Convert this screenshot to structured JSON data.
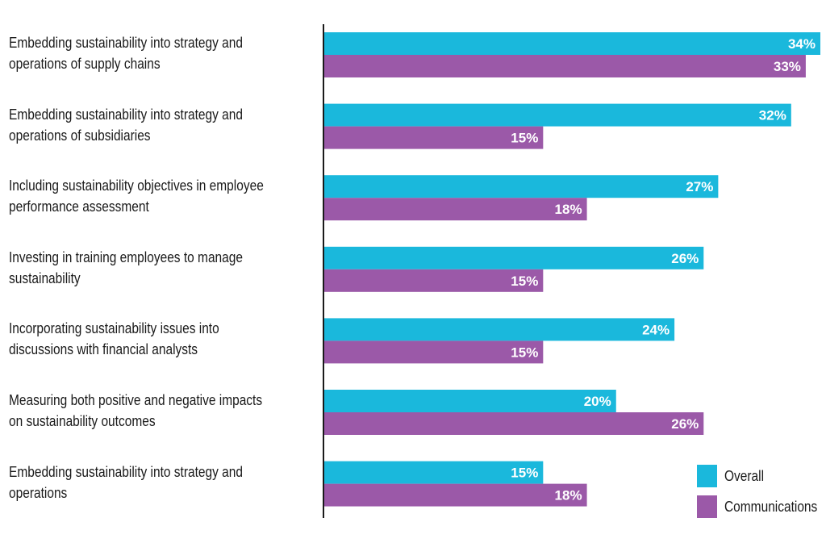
{
  "chart_data": {
    "type": "bar",
    "orientation": "horizontal",
    "categories": [
      [
        "Embedding sustainability into strategy and",
        "operations of supply chains"
      ],
      [
        "Embedding sustainability into strategy and",
        "operations of subsidiaries"
      ],
      [
        "Including sustainability objectives in employee",
        "performance assessment"
      ],
      [
        "Investing in training employees to manage",
        "sustainability"
      ],
      [
        "Incorporating sustainability issues into",
        "discussions with financial analysts"
      ],
      [
        "Measuring both positive and negative impacts",
        "on sustainability outcomes"
      ],
      [
        "Embedding sustainability into strategy and",
        "operations"
      ]
    ],
    "series": [
      {
        "name": "Overall",
        "values": [
          34,
          32,
          27,
          26,
          24,
          20,
          15
        ],
        "labels": [
          "34%",
          "32%",
          "27%",
          "26%",
          "24%",
          "20%",
          "15%"
        ]
      },
      {
        "name": "Communications",
        "values": [
          33,
          15,
          18,
          15,
          15,
          26,
          18
        ],
        "labels": [
          "33%",
          "15%",
          "18%",
          "15%",
          "15%",
          "26%",
          "18%"
        ]
      }
    ],
    "colors": {
      "Overall": "#1ab8dc",
      "Communications": "#9b59a8"
    },
    "value_unit": "%",
    "xlim": [
      0,
      34
    ],
    "grid": false,
    "legend_position": "bottom-right"
  }
}
